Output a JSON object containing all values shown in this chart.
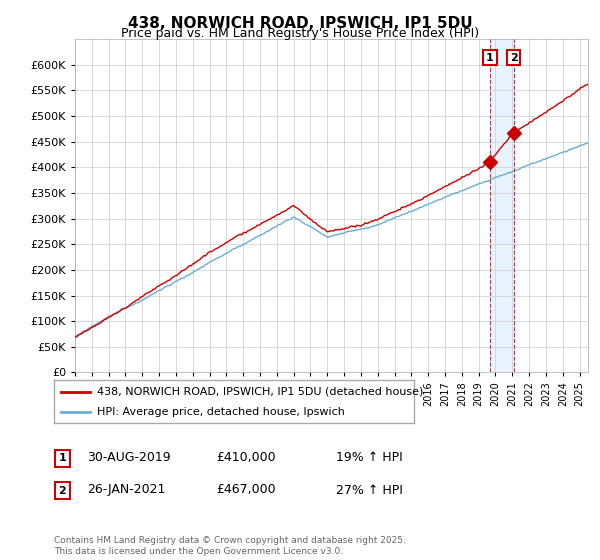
{
  "title": "438, NORWICH ROAD, IPSWICH, IP1 5DU",
  "subtitle": "Price paid vs. HM Land Registry's House Price Index (HPI)",
  "legend_line1": "438, NORWICH ROAD, IPSWICH, IP1 5DU (detached house)",
  "legend_line2": "HPI: Average price, detached house, Ipswich",
  "annotation1_date": "30-AUG-2019",
  "annotation1_price": 410000,
  "annotation1_text": "19% ↑ HPI",
  "annotation1_year": 2019.667,
  "annotation2_date": "26-JAN-2021",
  "annotation2_price": 467000,
  "annotation2_text": "27% ↑ HPI",
  "annotation2_year": 2021.083,
  "footer": "Contains HM Land Registry data © Crown copyright and database right 2025.\nThis data is licensed under the Open Government Licence v3.0.",
  "red_color": "#cc0000",
  "blue_color": "#6aaed6",
  "shade_color": "#ddeeff",
  "background_color": "#ffffff",
  "grid_color": "#cccccc",
  "ylim": [
    0,
    650000
  ],
  "yticks": [
    0,
    50000,
    100000,
    150000,
    200000,
    250000,
    300000,
    350000,
    400000,
    450000,
    500000,
    550000,
    600000
  ],
  "xlim_start": 1995.0,
  "xlim_end": 2025.5
}
